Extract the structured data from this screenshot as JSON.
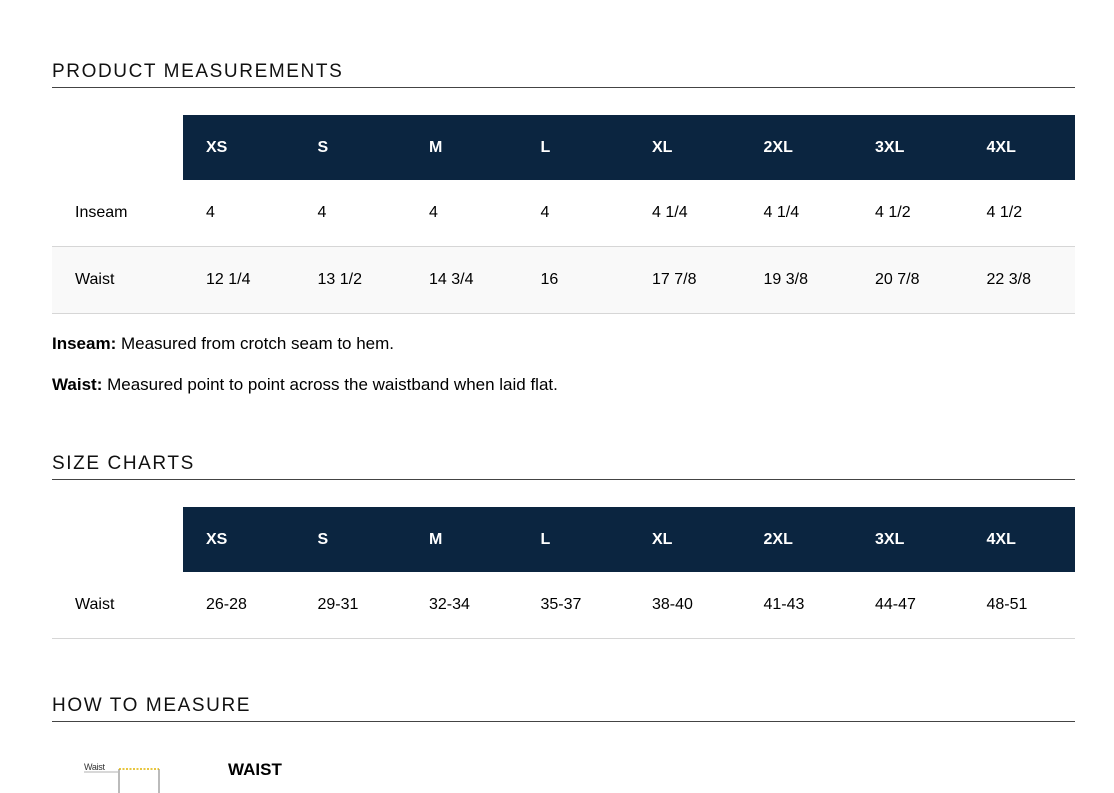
{
  "measurements": {
    "title": "PRODUCT MEASUREMENTS",
    "sizes": [
      "XS",
      "S",
      "M",
      "L",
      "XL",
      "2XL",
      "3XL",
      "4XL"
    ],
    "rows": [
      {
        "label": "Inseam",
        "values": [
          "4",
          "4",
          "4",
          "4",
          "4 1/4",
          "4 1/4",
          "4 1/2",
          "4 1/2"
        ]
      },
      {
        "label": "Waist",
        "values": [
          "12 1/4",
          "13 1/2",
          "14 3/4",
          "16",
          "17 7/8",
          "19 3/8",
          "20 7/8",
          "22 3/8"
        ]
      }
    ],
    "notes": [
      {
        "term": "Inseam:",
        "text": " Measured from crotch seam to hem."
      },
      {
        "term": "Waist:",
        "text": " Measured point to point across the waistband when laid flat."
      }
    ]
  },
  "size_charts": {
    "title": "SIZE CHARTS",
    "sizes": [
      "XS",
      "S",
      "M",
      "L",
      "XL",
      "2XL",
      "3XL",
      "4XL"
    ],
    "rows": [
      {
        "label": "Waist",
        "values": [
          "26-28",
          "29-31",
          "32-34",
          "35-37",
          "38-40",
          "41-43",
          "44-47",
          "48-51"
        ]
      }
    ]
  },
  "how_to_measure": {
    "title": "HOW TO MEASURE",
    "diagram_label": "Waist",
    "item_label": "WAIST"
  },
  "colors": {
    "header_bg": "#0b2540",
    "header_text": "#ffffff",
    "row_divider": "#d6d6d6",
    "measure_line": "#e0b400"
  }
}
